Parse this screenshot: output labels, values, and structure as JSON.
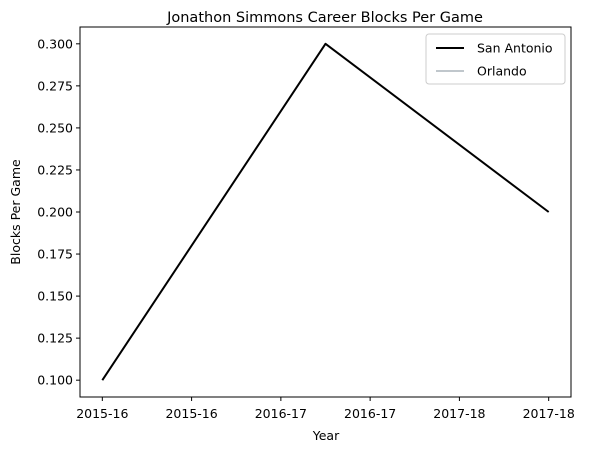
{
  "chart_data": {
    "type": "line",
    "title": "Jonathon Simmons Career Blocks Per Game",
    "xlabel": "Year",
    "ylabel": "Blocks Per Game",
    "x_tick_labels": [
      "2015-16",
      "2015-16",
      "2016-17",
      "2016-17",
      "2017-18",
      "2017-18"
    ],
    "y_ticks": [
      0.1,
      0.125,
      0.15,
      0.175,
      0.2,
      0.225,
      0.25,
      0.275,
      0.3
    ],
    "y_tick_labels": [
      "0.100",
      "0.125",
      "0.150",
      "0.175",
      "0.200",
      "0.225",
      "0.250",
      "0.275",
      "0.300"
    ],
    "x_domain": [
      -0.1,
      2.1
    ],
    "x_tick_positions": [
      0,
      0.4,
      0.8,
      1.2,
      1.6,
      2.0
    ],
    "ylim": [
      0.09,
      0.31
    ],
    "grid": false,
    "legend_position": "top-right",
    "series": [
      {
        "name": "San Antonio",
        "color": "#000000",
        "x": [
          0,
          1,
          2
        ],
        "y": [
          0.1,
          0.3,
          0.2
        ]
      },
      {
        "name": "Orlando",
        "color": "#c0c7cc",
        "x": [],
        "y": []
      }
    ]
  }
}
